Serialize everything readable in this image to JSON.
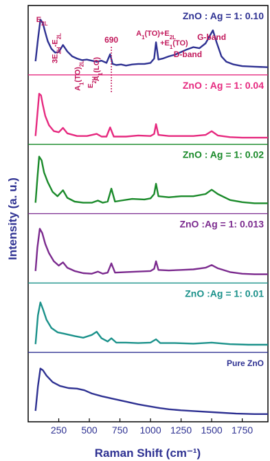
{
  "chart_data": {
    "type": "line",
    "xlabel": "Raman Shift (cm⁻¹)",
    "ylabel": "Intensity (a. u.)",
    "xlim": [
      0,
      1960
    ],
    "xticks": [
      250,
      500,
      750,
      1000,
      1250,
      1500,
      1750
    ],
    "xtick_labels": [
      "250",
      "500",
      "750",
      "1000",
      "1250",
      "1500",
      "1750"
    ],
    "grid": false,
    "stacked_panels": true,
    "series": [
      {
        "name": "ZnO : Ag = 1: 0.10",
        "color": "#2e3192",
        "label_color": "#2e3192",
        "peak_markers": [
          {
            "label": "E2L",
            "x": 100
          },
          {
            "label": "3E2H-E2L",
            "x": 285
          },
          {
            "label": "A1(TO)2L",
            "x": 470
          },
          {
            "label": "E2H",
            "x": 550
          },
          {
            "label": "A1(LO)",
            "x": 600
          },
          {
            "label": "690",
            "x": 680
          },
          {
            "label": "A1(TO)+E2L +E1(TO)",
            "x": 1045
          },
          {
            "label": "D-band",
            "x": 1350
          },
          {
            "label": "G-band",
            "x": 1500
          }
        ],
        "points": [
          [
            60,
            0.15
          ],
          [
            80,
            0.55
          ],
          [
            100,
            0.92
          ],
          [
            120,
            0.85
          ],
          [
            140,
            0.68
          ],
          [
            160,
            0.52
          ],
          [
            190,
            0.38
          ],
          [
            220,
            0.31
          ],
          [
            250,
            0.32
          ],
          [
            285,
            0.45
          ],
          [
            320,
            0.33
          ],
          [
            360,
            0.24
          ],
          [
            400,
            0.2
          ],
          [
            440,
            0.17
          ],
          [
            480,
            0.18
          ],
          [
            520,
            0.16
          ],
          [
            560,
            0.14
          ],
          [
            600,
            0.16
          ],
          [
            640,
            0.12
          ],
          [
            670,
            0.28
          ],
          [
            690,
            0.1
          ],
          [
            720,
            0.08
          ],
          [
            760,
            0.09
          ],
          [
            800,
            0.07
          ],
          [
            850,
            0.09
          ],
          [
            900,
            0.1
          ],
          [
            950,
            0.1
          ],
          [
            1000,
            0.12
          ],
          [
            1030,
            0.2
          ],
          [
            1045,
            0.5
          ],
          [
            1065,
            0.18
          ],
          [
            1100,
            0.2
          ],
          [
            1150,
            0.24
          ],
          [
            1200,
            0.27
          ],
          [
            1250,
            0.32
          ],
          [
            1300,
            0.37
          ],
          [
            1350,
            0.41
          ],
          [
            1400,
            0.39
          ],
          [
            1450,
            0.48
          ],
          [
            1490,
            0.64
          ],
          [
            1510,
            0.72
          ],
          [
            1540,
            0.5
          ],
          [
            1580,
            0.24
          ],
          [
            1620,
            0.14
          ],
          [
            1680,
            0.09
          ],
          [
            1750,
            0.06
          ],
          [
            1850,
            0.05
          ],
          [
            1960,
            0.04
          ]
        ]
      },
      {
        "name": "ZnO : Ag = 1: 0.04",
        "color": "#e6297f",
        "label_color": "#e6297f",
        "points": [
          [
            60,
            0.05
          ],
          [
            75,
            0.45
          ],
          [
            90,
            0.83
          ],
          [
            105,
            0.8
          ],
          [
            120,
            0.62
          ],
          [
            140,
            0.42
          ],
          [
            170,
            0.25
          ],
          [
            210,
            0.14
          ],
          [
            250,
            0.12
          ],
          [
            285,
            0.2
          ],
          [
            320,
            0.1
          ],
          [
            400,
            0.05
          ],
          [
            480,
            0.05
          ],
          [
            560,
            0.09
          ],
          [
            600,
            0.04
          ],
          [
            640,
            0.04
          ],
          [
            670,
            0.21
          ],
          [
            700,
            0.04
          ],
          [
            800,
            0.04
          ],
          [
            900,
            0.06
          ],
          [
            1000,
            0.05
          ],
          [
            1030,
            0.09
          ],
          [
            1045,
            0.27
          ],
          [
            1065,
            0.07
          ],
          [
            1150,
            0.05
          ],
          [
            1250,
            0.05
          ],
          [
            1350,
            0.05
          ],
          [
            1450,
            0.07
          ],
          [
            1500,
            0.14
          ],
          [
            1550,
            0.06
          ],
          [
            1650,
            0.03
          ],
          [
            1750,
            0.02
          ],
          [
            1960,
            0.02
          ]
        ]
      },
      {
        "name": "ZnO : Ag = 1: 0.02",
        "color": "#1a8a2a",
        "label_color": "#1a8a2a",
        "points": [
          [
            60,
            0.1
          ],
          [
            75,
            0.55
          ],
          [
            90,
            0.95
          ],
          [
            110,
            0.88
          ],
          [
            130,
            0.66
          ],
          [
            160,
            0.48
          ],
          [
            200,
            0.3
          ],
          [
            240,
            0.22
          ],
          [
            285,
            0.33
          ],
          [
            320,
            0.19
          ],
          [
            380,
            0.12
          ],
          [
            450,
            0.1
          ],
          [
            520,
            0.1
          ],
          [
            570,
            0.14
          ],
          [
            610,
            0.1
          ],
          [
            650,
            0.12
          ],
          [
            680,
            0.36
          ],
          [
            710,
            0.12
          ],
          [
            760,
            0.14
          ],
          [
            850,
            0.17
          ],
          [
            950,
            0.16
          ],
          [
            1000,
            0.18
          ],
          [
            1030,
            0.26
          ],
          [
            1045,
            0.45
          ],
          [
            1065,
            0.22
          ],
          [
            1150,
            0.2
          ],
          [
            1250,
            0.22
          ],
          [
            1350,
            0.22
          ],
          [
            1450,
            0.26
          ],
          [
            1500,
            0.34
          ],
          [
            1550,
            0.26
          ],
          [
            1650,
            0.15
          ],
          [
            1750,
            0.11
          ],
          [
            1850,
            0.09
          ],
          [
            1960,
            0.09
          ]
        ]
      },
      {
        "name": "ZnO :Ag = 1: 0.013",
        "color": "#7b2a8e",
        "label_color": "#7b2a8e",
        "points": [
          [
            60,
            0.12
          ],
          [
            75,
            0.55
          ],
          [
            95,
            0.9
          ],
          [
            115,
            0.82
          ],
          [
            140,
            0.62
          ],
          [
            170,
            0.45
          ],
          [
            210,
            0.3
          ],
          [
            250,
            0.22
          ],
          [
            285,
            0.28
          ],
          [
            320,
            0.18
          ],
          [
            380,
            0.12
          ],
          [
            450,
            0.08
          ],
          [
            520,
            0.07
          ],
          [
            570,
            0.11
          ],
          [
            610,
            0.07
          ],
          [
            650,
            0.09
          ],
          [
            680,
            0.26
          ],
          [
            710,
            0.09
          ],
          [
            800,
            0.1
          ],
          [
            900,
            0.11
          ],
          [
            1000,
            0.12
          ],
          [
            1030,
            0.16
          ],
          [
            1045,
            0.3
          ],
          [
            1065,
            0.14
          ],
          [
            1150,
            0.13
          ],
          [
            1250,
            0.14
          ],
          [
            1350,
            0.15
          ],
          [
            1450,
            0.18
          ],
          [
            1500,
            0.23
          ],
          [
            1550,
            0.17
          ],
          [
            1650,
            0.1
          ],
          [
            1750,
            0.07
          ],
          [
            1850,
            0.06
          ],
          [
            1960,
            0.06
          ]
        ]
      },
      {
        "name": "ZnO :Ag = 1: 0.01",
        "color": "#1a918a",
        "label_color": "#1a918a",
        "points": [
          [
            60,
            0.05
          ],
          [
            80,
            0.58
          ],
          [
            100,
            0.82
          ],
          [
            120,
            0.7
          ],
          [
            150,
            0.5
          ],
          [
            190,
            0.35
          ],
          [
            240,
            0.27
          ],
          [
            300,
            0.24
          ],
          [
            380,
            0.2
          ],
          [
            450,
            0.17
          ],
          [
            520,
            0.22
          ],
          [
            560,
            0.28
          ],
          [
            600,
            0.16
          ],
          [
            650,
            0.1
          ],
          [
            680,
            0.16
          ],
          [
            720,
            0.08
          ],
          [
            800,
            0.08
          ],
          [
            900,
            0.07
          ],
          [
            1000,
            0.08
          ],
          [
            1045,
            0.14
          ],
          [
            1080,
            0.07
          ],
          [
            1200,
            0.07
          ],
          [
            1350,
            0.06
          ],
          [
            1500,
            0.08
          ],
          [
            1650,
            0.05
          ],
          [
            1800,
            0.04
          ],
          [
            1960,
            0.04
          ]
        ]
      },
      {
        "name": "Pure ZnO",
        "color": "#2e3192",
        "label_color": "#2e3192",
        "points": [
          [
            60,
            0.1
          ],
          [
            80,
            0.55
          ],
          [
            100,
            0.88
          ],
          [
            120,
            0.85
          ],
          [
            150,
            0.75
          ],
          [
            200,
            0.63
          ],
          [
            260,
            0.56
          ],
          [
            330,
            0.52
          ],
          [
            400,
            0.51
          ],
          [
            460,
            0.48
          ],
          [
            520,
            0.42
          ],
          [
            600,
            0.37
          ],
          [
            700,
            0.32
          ],
          [
            800,
            0.27
          ],
          [
            900,
            0.22
          ],
          [
            1000,
            0.18
          ],
          [
            1080,
            0.15
          ],
          [
            1150,
            0.13
          ],
          [
            1250,
            0.11
          ],
          [
            1400,
            0.09
          ],
          [
            1550,
            0.07
          ],
          [
            1700,
            0.05
          ],
          [
            1850,
            0.04
          ],
          [
            1960,
            0.04
          ]
        ]
      }
    ]
  }
}
